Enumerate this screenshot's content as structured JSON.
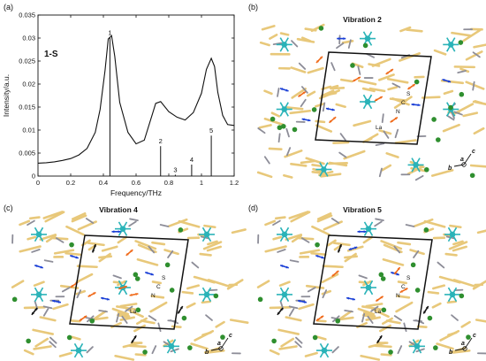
{
  "figure": {
    "panels": [
      {
        "label": "(a)"
      },
      {
        "label": "(b)",
        "title": "Vibration 2",
        "atom_labels": [
          "S",
          "C",
          "N",
          "La"
        ],
        "axis_labels": [
          "c",
          "a",
          "b"
        ]
      },
      {
        "label": "(c)",
        "title": "Vibration 4",
        "atom_labels": [
          "S",
          "C",
          "N",
          "La"
        ],
        "axis_labels": [
          "c",
          "a",
          "b"
        ]
      },
      {
        "label": "(d)",
        "title": "Vibration 5",
        "atom_labels": [
          "S",
          "C",
          "N",
          "La"
        ],
        "axis_labels": [
          "c",
          "a",
          "b"
        ]
      }
    ]
  },
  "colors": {
    "framework": "#e8c87a",
    "lanthanum": "#2ab3b8",
    "chlorine": "#2f8f2f",
    "nitrogen": "#8d8d98",
    "arrow_blue": "#1a3fd6",
    "arrow_orange": "#f06a1a",
    "arrow_black": "#111111",
    "unit_cell": "#111111"
  },
  "chart_data": {
    "type": "line",
    "title": "1-S",
    "xlabel": "Frequency/THz",
    "ylabel": "Intensity/a.u.",
    "xlim": [
      0,
      1.2
    ],
    "ylim": [
      0,
      0.035
    ],
    "xticks": [
      "0",
      "0.2",
      "0.4",
      "0.6",
      "0.8",
      "1",
      "1.2"
    ],
    "yticks": [
      "0",
      "0.005",
      "0.01",
      "0.015",
      "0.02",
      "0.025",
      "0.03",
      "0.035"
    ],
    "series": [
      {
        "x": [
          0,
          0.05,
          0.1,
          0.15,
          0.2,
          0.25,
          0.3,
          0.35,
          0.38,
          0.41,
          0.43,
          0.45,
          0.47,
          0.5,
          0.55,
          0.6,
          0.65,
          0.7,
          0.72,
          0.75,
          0.8,
          0.85,
          0.9,
          0.95,
          1.0,
          1.03,
          1.06,
          1.08,
          1.1,
          1.13,
          1.16,
          1.2
        ],
        "y": [
          0.0028,
          0.0029,
          0.0031,
          0.0034,
          0.0038,
          0.0046,
          0.006,
          0.0095,
          0.0145,
          0.023,
          0.0298,
          0.0305,
          0.026,
          0.016,
          0.0095,
          0.007,
          0.0078,
          0.0135,
          0.0158,
          0.0162,
          0.014,
          0.0128,
          0.0122,
          0.0138,
          0.018,
          0.0232,
          0.0256,
          0.0238,
          0.0182,
          0.0132,
          0.0112,
          0.011
        ]
      }
    ],
    "sticks": [
      {
        "label": "1",
        "x": 0.44,
        "height": 0.0301
      },
      {
        "label": "2",
        "x": 0.75,
        "height": 0.0065
      },
      {
        "label": "3",
        "x": 0.84,
        "height": 0.0003
      },
      {
        "label": "4",
        "x": 0.94,
        "height": 0.0025
      },
      {
        "label": "5",
        "x": 1.06,
        "height": 0.0088
      }
    ],
    "grid": false
  }
}
